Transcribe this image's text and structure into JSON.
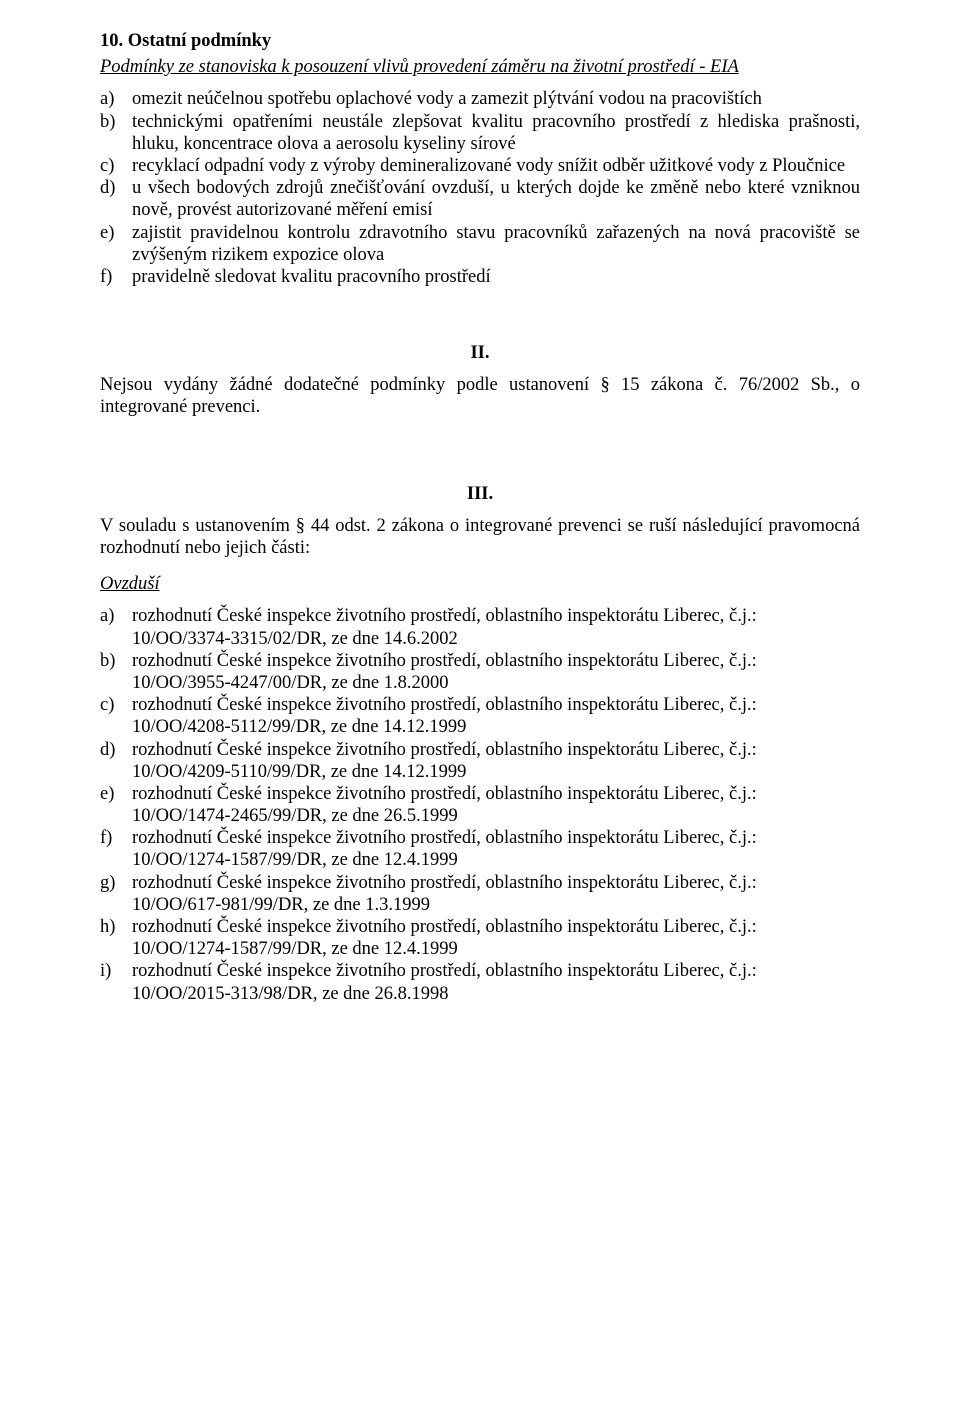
{
  "section": {
    "number_title": "10. Ostatní podmínky",
    "subtitle": "Podmínky ze stanoviska k posouzení vlivů provedení záměru na životní prostředí - EIA"
  },
  "conditions": [
    {
      "marker": "a)",
      "text": "omezit neúčelnou spotřebu oplachové vody a zamezit plýtvání vodou na pracovištích"
    },
    {
      "marker": "b)",
      "text": "technickými opatřeními neustále zlepšovat kvalitu pracovního prostředí z hlediska prašnosti, hluku, koncentrace olova a aerosolu kyseliny sírové"
    },
    {
      "marker": "c)",
      "text": "recyklací odpadní vody z výroby demineralizované vody snížit odběr užitkové vody z Ploučnice"
    },
    {
      "marker": "d)",
      "text": "u všech bodových zdrojů znečišťování ovzduší, u kterých dojde ke změně nebo které vzniknou nově, provést autorizované měření emisí"
    },
    {
      "marker": "e)",
      "text": "zajistit pravidelnou kontrolu zdravotního stavu pracovníků zařazených na nová pracoviště se zvýšeným rizikem expozice olova"
    },
    {
      "marker": "f)",
      "text": "pravidelně sledovat kvalitu pracovního prostředí"
    }
  ],
  "roman_ii": "II.",
  "para_ii": "Nejsou vydány žádné dodatečné podmínky podle ustanovení § 15 zákona č. 76/2002 Sb., o integrované prevenci.",
  "roman_iii": "III.",
  "para_iii": "V souladu s ustanovením § 44 odst. 2 zákona o integrované prevenci se ruší následující pravomocná rozhodnutí nebo jejich části:",
  "ovzdusi_heading": "Ovzduší",
  "decisions": [
    {
      "marker": "a)",
      "line1": "rozhodnutí České inspekce životního prostředí, oblastního inspektorátu Liberec, č.j.:",
      "line2": "10/OO/3374-3315/02/DR, ze dne 14.6.2002"
    },
    {
      "marker": "b)",
      "line1": "rozhodnutí České inspekce životního prostředí, oblastního inspektorátu Liberec, č.j.:",
      "line2": "10/OO/3955-4247/00/DR, ze dne 1.8.2000"
    },
    {
      "marker": "c)",
      "line1": "rozhodnutí České inspekce životního prostředí, oblastního inspektorátu Liberec, č.j.:",
      "line2": "10/OO/4208-5112/99/DR, ze dne 14.12.1999"
    },
    {
      "marker": "d)",
      "line1": "rozhodnutí České inspekce životního prostředí, oblastního inspektorátu Liberec, č.j.:",
      "line2": "10/OO/4209-5110/99/DR, ze dne 14.12.1999"
    },
    {
      "marker": "e)",
      "line1": "rozhodnutí České inspekce životního prostředí, oblastního inspektorátu Liberec, č.j.:",
      "line2": "10/OO/1474-2465/99/DR, ze dne 26.5.1999"
    },
    {
      "marker": "f)",
      "line1": "rozhodnutí České inspekce životního prostředí, oblastního inspektorátu Liberec, č.j.:",
      "line2": "10/OO/1274-1587/99/DR, ze dne 12.4.1999"
    },
    {
      "marker": "g)",
      "line1": "rozhodnutí České inspekce životního prostředí, oblastního inspektorátu Liberec, č.j.:",
      "line2": "10/OO/617-981/99/DR, ze dne 1.3.1999"
    },
    {
      "marker": "h)",
      "line1": "rozhodnutí České inspekce životního prostředí, oblastního inspektorátu Liberec, č.j.:",
      "line2": "10/OO/1274-1587/99/DR, ze dne 12.4.1999"
    },
    {
      "marker": "i)",
      "line1": "rozhodnutí České inspekce životního prostředí, oblastního inspektorátu Liberec, č.j.:",
      "line2": "10/OO/2015-313/98/DR, ze dne 26.8.1998"
    }
  ]
}
